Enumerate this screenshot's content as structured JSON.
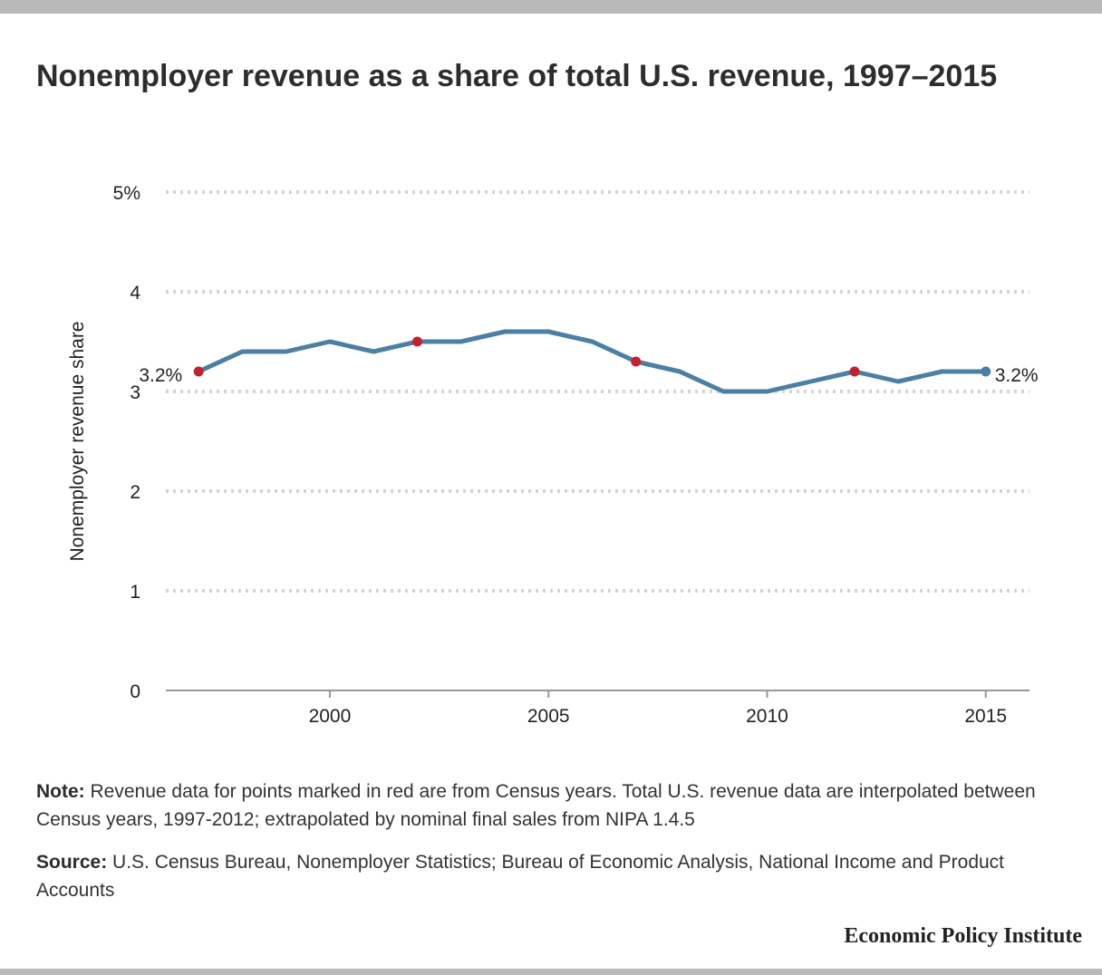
{
  "title": "Nonemployer revenue as a share of total U.S. revenue, 1997–2015",
  "chart_data": {
    "type": "line",
    "title": "Nonemployer revenue as a share of total U.S. revenue, 1997–2015",
    "ylabel": "Nonemployer revenue share",
    "xlabel": "",
    "ylim": [
      0,
      5
    ],
    "xlim": [
      1996.25,
      2016
    ],
    "y_ticks": [
      "0",
      "1",
      "2",
      "3",
      "4",
      "5%"
    ],
    "y_tick_values": [
      0,
      1,
      2,
      3,
      4,
      5
    ],
    "x_ticks": [
      "2000",
      "2005",
      "2010",
      "2015"
    ],
    "x_tick_values": [
      2000,
      2005,
      2010,
      2015
    ],
    "grid": "horizontal dotted",
    "line_color": "#4b7fa3",
    "marker_color_census": "#c5202f",
    "x": [
      1997,
      1998,
      1999,
      2000,
      2001,
      2002,
      2003,
      2004,
      2005,
      2006,
      2007,
      2008,
      2009,
      2010,
      2011,
      2012,
      2013,
      2014,
      2015
    ],
    "values": [
      3.2,
      3.4,
      3.4,
      3.5,
      3.4,
      3.5,
      3.5,
      3.6,
      3.6,
      3.5,
      3.3,
      3.2,
      3.0,
      3.0,
      3.1,
      3.2,
      3.1,
      3.2,
      3.2
    ],
    "census_years": [
      1997,
      2002,
      2007,
      2012
    ],
    "annotations": [
      {
        "x": 1997,
        "text": "3.2%",
        "side": "left"
      },
      {
        "x": 2015,
        "text": "3.2%",
        "side": "right"
      }
    ]
  },
  "note_label": "Note:",
  "note_text": " Revenue data for points marked in red are from Census years. Total U.S. revenue data are interpolated between Census years, 1997-2012; extrapolated by nominal final sales from NIPA 1.4.5",
  "source_label": "Source:",
  "source_text": " U.S. Census Bureau, Nonemployer Statistics; Bureau of Economic Analysis, National Income and Product Accounts",
  "footer": "Economic Policy Institute"
}
